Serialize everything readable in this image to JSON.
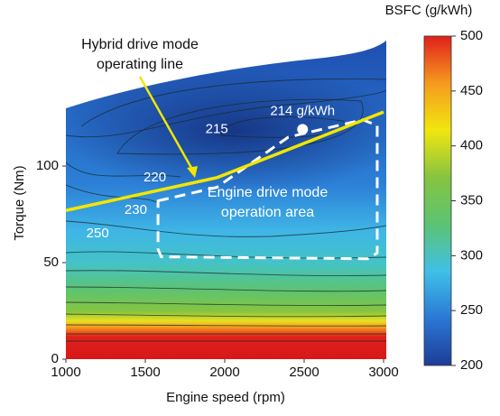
{
  "chart_data": {
    "type": "contour",
    "x_label": "Engine speed (rpm)",
    "y_label": "Torque (Nm)",
    "xlim": [
      1000,
      3000
    ],
    "xticks": [
      1000,
      1500,
      2000,
      2500,
      3000
    ],
    "ylim": [
      0,
      165
    ],
    "yticks": [
      0,
      50,
      100
    ],
    "colorbar": {
      "title": "BSFC (g/kWh)",
      "lim": [
        200,
        500
      ],
      "ticks": [
        200,
        250,
        300,
        350,
        400,
        450,
        500
      ],
      "colors": [
        "#1d3c98",
        "#2b78d4",
        "#3fc0e8",
        "#5cc373",
        "#86c440",
        "#f1e60f",
        "#f59a1f",
        "#e0201b"
      ]
    },
    "contours": [
      {
        "level": 215,
        "x": 1950,
        "y": 119
      },
      {
        "level": 220,
        "x": 1560,
        "y": 94
      },
      {
        "level": 230,
        "x": 1440,
        "y": 77
      },
      {
        "level": 250,
        "x": 1200,
        "y": 65
      }
    ],
    "min_point": {
      "x": 2490,
      "y": 119,
      "value": 214,
      "label": "214 g/kWh"
    },
    "series": [
      {
        "name": "Hybrid drive mode operating line",
        "color": "#f2e600",
        "x": [
          1000,
          1950,
          3000
        ],
        "values": [
          77,
          94,
          128
        ]
      }
    ],
    "annotations": {
      "hybrid": [
        "Hybrid drive mode",
        "operating line"
      ],
      "engine_area": {
        "lines": [
          "Engine drive mode",
          "operation area"
        ],
        "x": [
          1580,
          1950,
          2400,
          2870,
          2960,
          2960,
          2900,
          1600,
          1580
        ],
        "y": [
          82,
          89,
          115,
          124,
          121,
          55,
          52,
          53,
          57
        ]
      }
    }
  }
}
